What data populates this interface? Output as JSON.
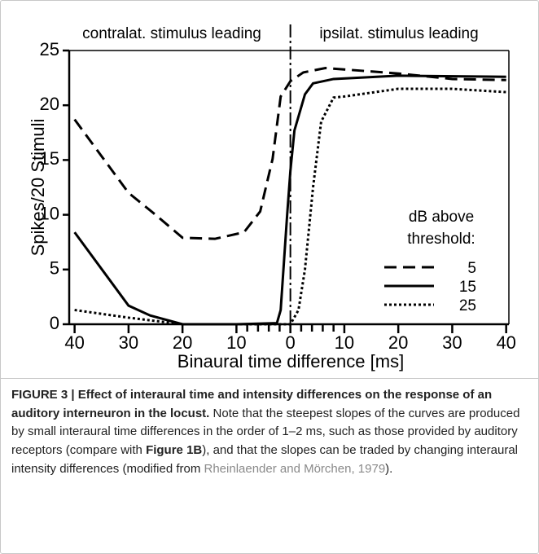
{
  "chart_data": {
    "type": "line",
    "annotations": [
      "contralat. stimulus leading",
      "ipsilat. stimulus leading"
    ],
    "ylabel": "Spikes/20 Stimuli",
    "xlabel": "Binaural time difference [ms]",
    "xlim": [
      -41,
      40.5
    ],
    "ylim": [
      0,
      25
    ],
    "yticks": [
      0,
      5,
      10,
      15,
      20,
      25
    ],
    "xticks": [
      {
        "value": -40,
        "label": "40"
      },
      {
        "value": -30,
        "label": "30"
      },
      {
        "value": -20,
        "label": "20"
      },
      {
        "value": -10,
        "label": "10"
      },
      0,
      10,
      20,
      30,
      40
    ],
    "minor_xticks": [
      -8,
      -6,
      -4,
      -2,
      2,
      4,
      6,
      8
    ],
    "legend_title": [
      "dB above",
      "threshold:"
    ],
    "series": [
      {
        "name": "5",
        "color": "#000000",
        "style": "dashed",
        "x": [
          -40,
          -30,
          -25,
          -20,
          -14,
          -8.6,
          -5.6,
          -3.3,
          -1.8,
          0,
          2.4,
          6.5,
          20,
          30,
          40
        ],
        "values": [
          18.7,
          12,
          10,
          7.9,
          7.8,
          8.4,
          10.3,
          15.1,
          20.8,
          22.2,
          23,
          23.4,
          22.9,
          22.4,
          22.3
        ]
      },
      {
        "name": "15",
        "color": "#000000",
        "style": "solid",
        "x": [
          -40,
          -30,
          -26,
          -20,
          -10,
          -2.5,
          -1.8,
          -0.6,
          0,
          0.75,
          2.7,
          4.2,
          8,
          20,
          40
        ],
        "values": [
          8.4,
          1.7,
          0.8,
          0,
          0,
          0.1,
          1.3,
          10,
          14,
          17.7,
          21,
          22,
          22.4,
          22.7,
          22.6
        ]
      },
      {
        "name": "25",
        "color": "#000000",
        "style": "dotted",
        "x": [
          -40,
          -30,
          -20,
          -10,
          0,
          1.5,
          2.7,
          4.2,
          5.7,
          8,
          10,
          20,
          30,
          40
        ],
        "values": [
          1.3,
          0.6,
          0,
          0,
          0,
          1.3,
          5,
          12.5,
          18.5,
          20.7,
          20.8,
          21.5,
          21.5,
          21.2
        ]
      }
    ]
  },
  "caption": {
    "label": "FIGURE 3 | Effect of interaural time and intensity differences on the response of an auditory interneuron in the locust.",
    "parts": [
      " Note that the steepest slopes of the curves are produced by small interaural time differences in the order of 1–2 ms, such as those provided by auditory receptors (compare with ",
      "Figure 1B",
      "), and that the slopes can be traded by changing interaural intensity differences (modified from ",
      "Rheinlaender and Mörchen, 1979",
      ")."
    ]
  }
}
